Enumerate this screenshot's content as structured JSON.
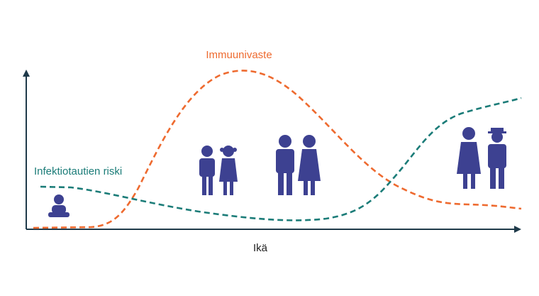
{
  "labels": {
    "immune": "Immuunivaste",
    "risk": "Infektiotautien riski",
    "axis": "Ikä"
  }
}
